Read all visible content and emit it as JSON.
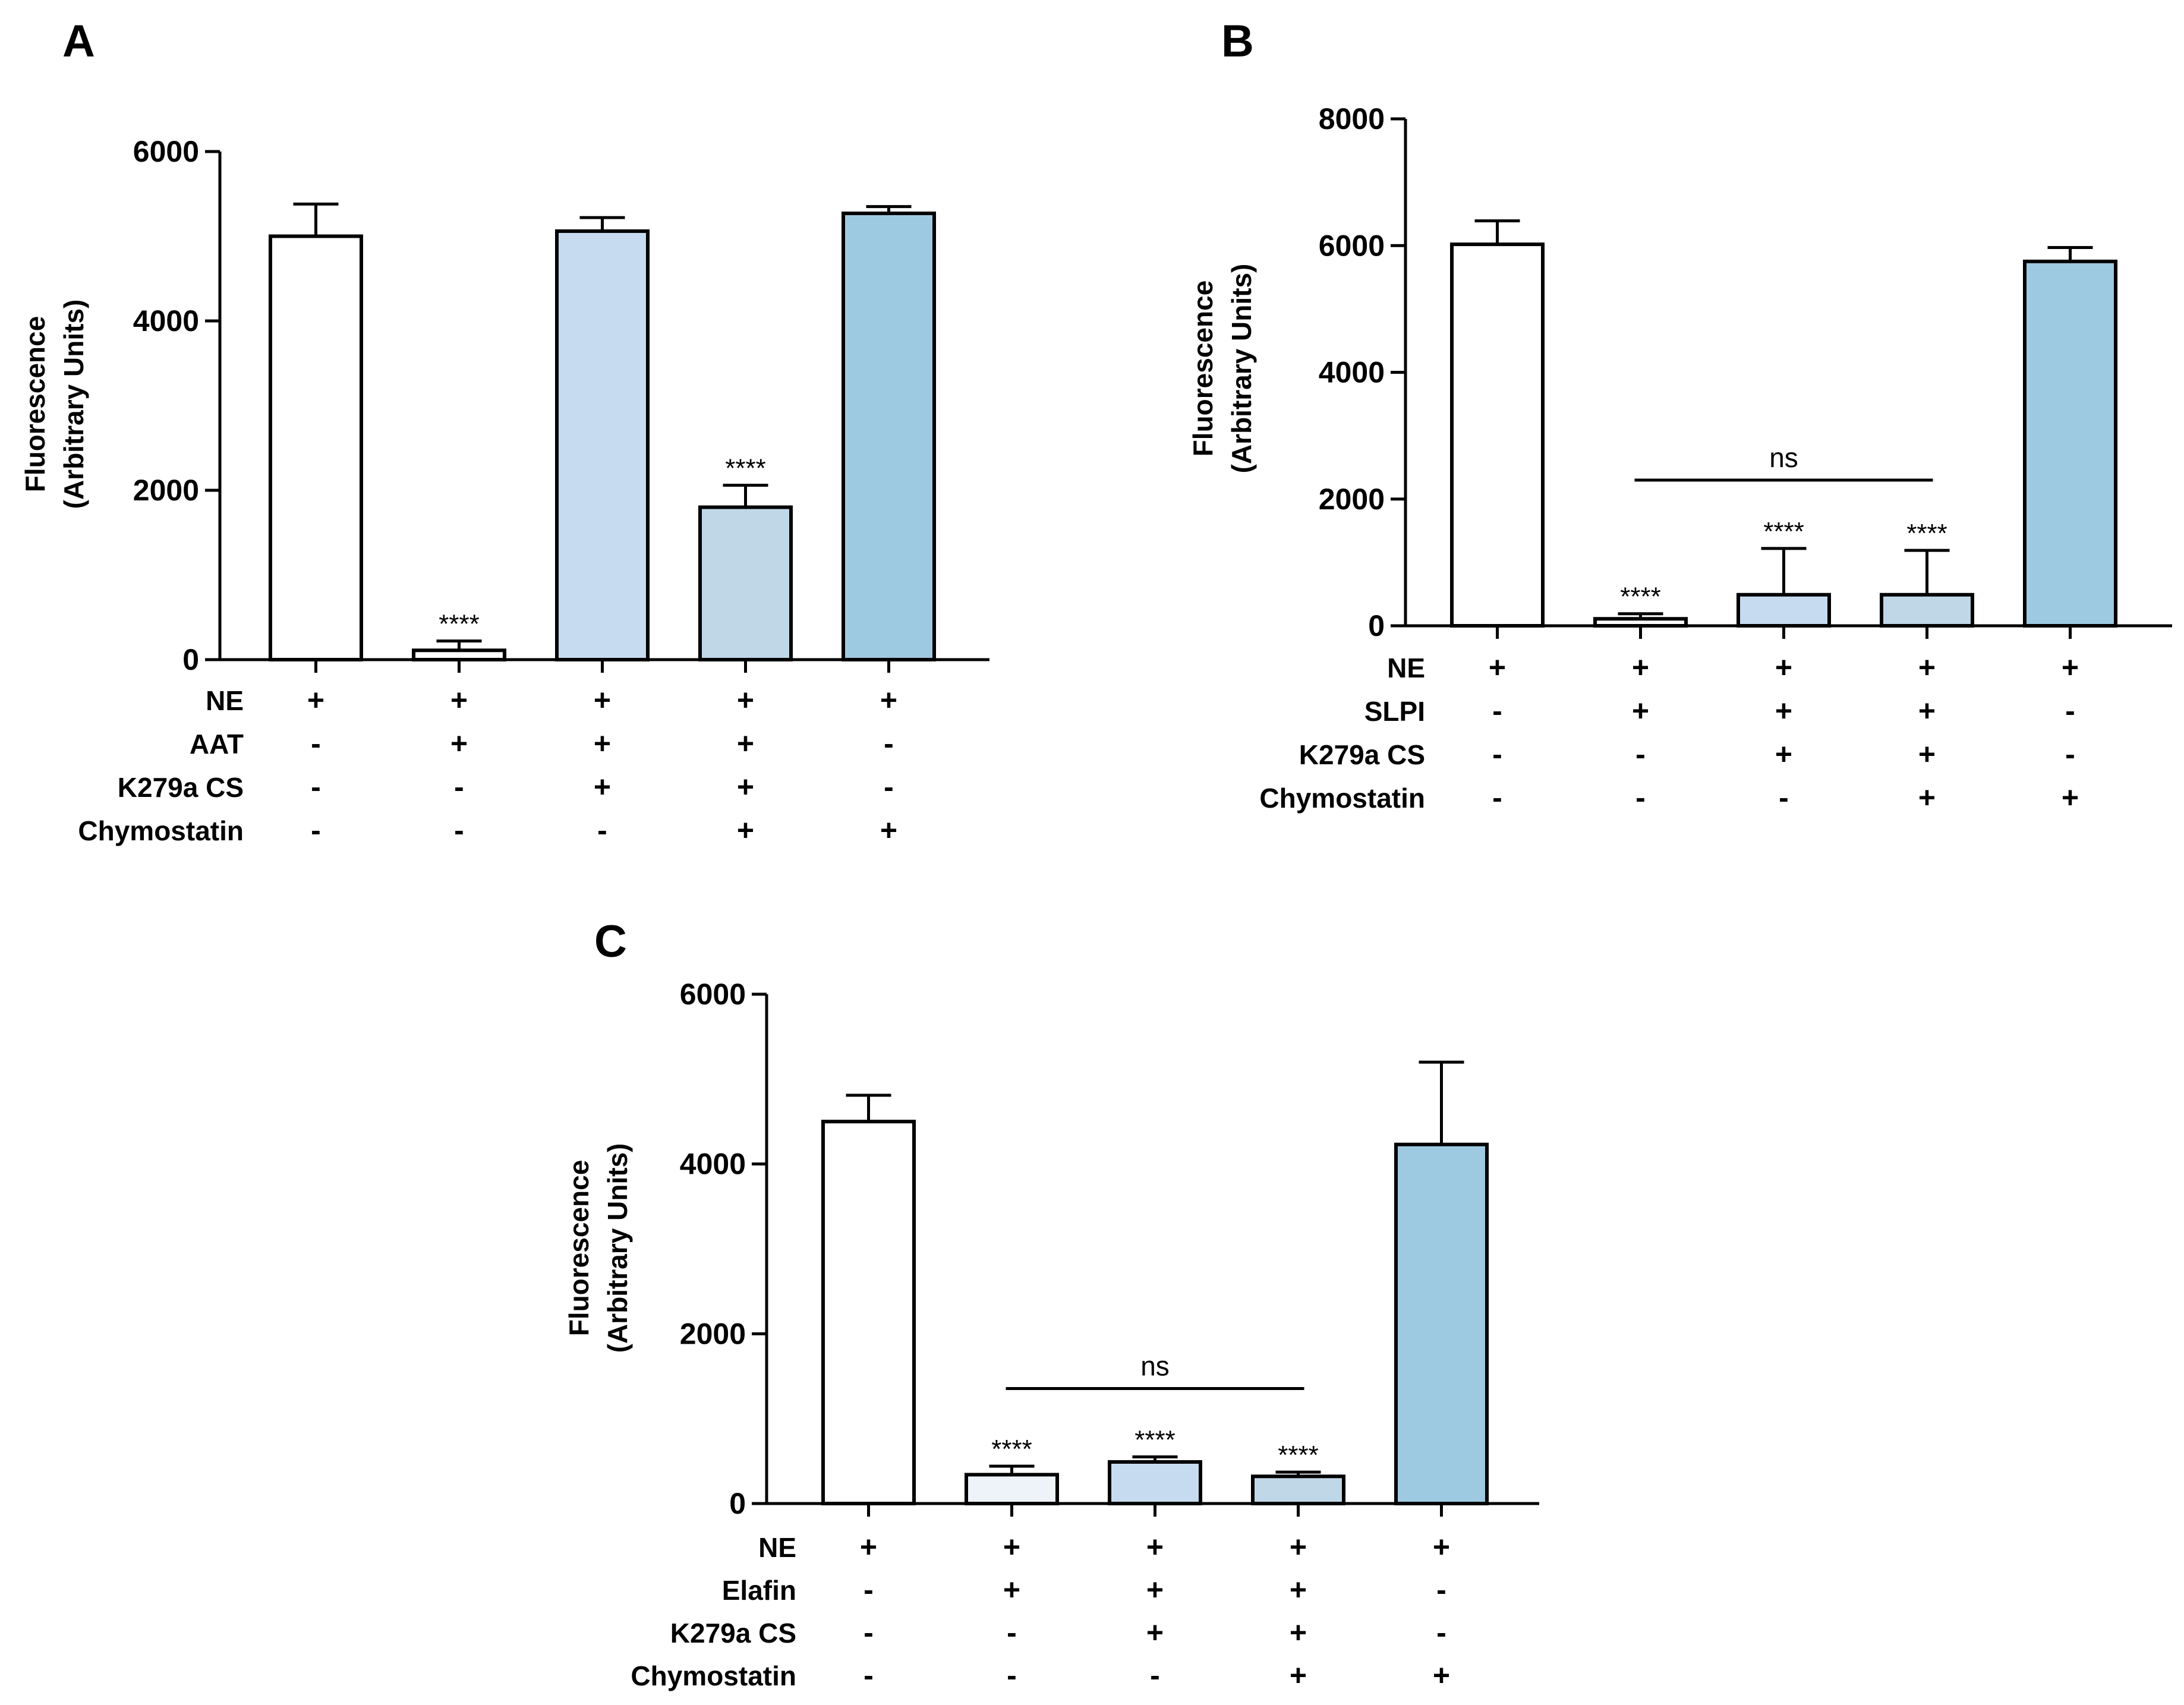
{
  "figure": {
    "background": "#ffffff",
    "bar_stroke": "#000000"
  },
  "chart_data": [
    {
      "panel": "A",
      "type": "bar",
      "ylabel_line1": "Fluorescence",
      "ylabel_line2": "(Arbitrary  Units)",
      "ylim": [
        0,
        6000
      ],
      "yticks": [
        0,
        2000,
        4000,
        6000
      ],
      "values": [
        5000,
        110,
        5060,
        1800,
        5270
      ],
      "errors": [
        380,
        110,
        160,
        260,
        80
      ],
      "colors": [
        "#ffffff",
        "#ffffff",
        "#c6dbef",
        "#bfd7e7",
        "#9ecae1"
      ],
      "significance": [
        "",
        "****",
        "",
        "****",
        ""
      ],
      "ns_bracket": null,
      "conditions": [
        {
          "label": "NE",
          "signs": [
            "+",
            "+",
            "+",
            "+",
            "+"
          ]
        },
        {
          "label": "AAT",
          "signs": [
            "-",
            "+",
            "+",
            "+",
            "-"
          ]
        },
        {
          "label": "K279a CS",
          "signs": [
            "-",
            "-",
            "+",
            "+",
            "-"
          ]
        },
        {
          "label": "Chymostatin",
          "signs": [
            "-",
            "-",
            "-",
            "+",
            "+"
          ]
        }
      ]
    },
    {
      "panel": "B",
      "type": "bar",
      "ylabel_line1": "Fluorescence",
      "ylabel_line2": "(Arbitrary  Units)",
      "ylim": [
        0,
        8000
      ],
      "yticks": [
        0,
        2000,
        4000,
        6000,
        8000
      ],
      "values": [
        6020,
        110,
        490,
        490,
        5750
      ],
      "errors": [
        370,
        80,
        730,
        700,
        220
      ],
      "colors": [
        "#ffffff",
        "#ffffff",
        "#c6dbef",
        "#bfd7e7",
        "#9ecae1"
      ],
      "significance": [
        "",
        "****",
        "****",
        "****",
        ""
      ],
      "ns_bracket": {
        "label": "ns",
        "from": 1,
        "to": 3
      },
      "conditions": [
        {
          "label": "NE",
          "signs": [
            "+",
            "+",
            "+",
            "+",
            "+"
          ]
        },
        {
          "label": "SLPI",
          "signs": [
            "-",
            "+",
            "+",
            "+",
            "-"
          ]
        },
        {
          "label": "K279a CS",
          "signs": [
            "-",
            "-",
            "+",
            "+",
            "-"
          ]
        },
        {
          "label": "Chymostatin",
          "signs": [
            "-",
            "-",
            "-",
            "+",
            "+"
          ]
        }
      ]
    },
    {
      "panel": "C",
      "type": "bar",
      "ylabel_line1": "Fluorescence",
      "ylabel_line2": "(Arbitrary  Units)",
      "ylim": [
        0,
        6000
      ],
      "yticks": [
        0,
        2000,
        4000,
        6000
      ],
      "values": [
        4500,
        340,
        490,
        320,
        4230
      ],
      "errors": [
        310,
        100,
        60,
        50,
        970
      ],
      "colors": [
        "#ffffff",
        "#eef3f9",
        "#c6dbef",
        "#bfd7e7",
        "#9ecae1"
      ],
      "significance": [
        "",
        "****",
        "****",
        "****",
        ""
      ],
      "ns_bracket": {
        "label": "ns",
        "from": 1,
        "to": 3
      },
      "conditions": [
        {
          "label": "NE",
          "signs": [
            "+",
            "+",
            "+",
            "+",
            "+"
          ]
        },
        {
          "label": "Elafin",
          "signs": [
            "-",
            "+",
            "+",
            "+",
            "-"
          ]
        },
        {
          "label": "K279a CS",
          "signs": [
            "-",
            "-",
            "+",
            "+",
            "-"
          ]
        },
        {
          "label": "Chymostatin",
          "signs": [
            "-",
            "-",
            "-",
            "+",
            "+"
          ]
        }
      ]
    }
  ]
}
